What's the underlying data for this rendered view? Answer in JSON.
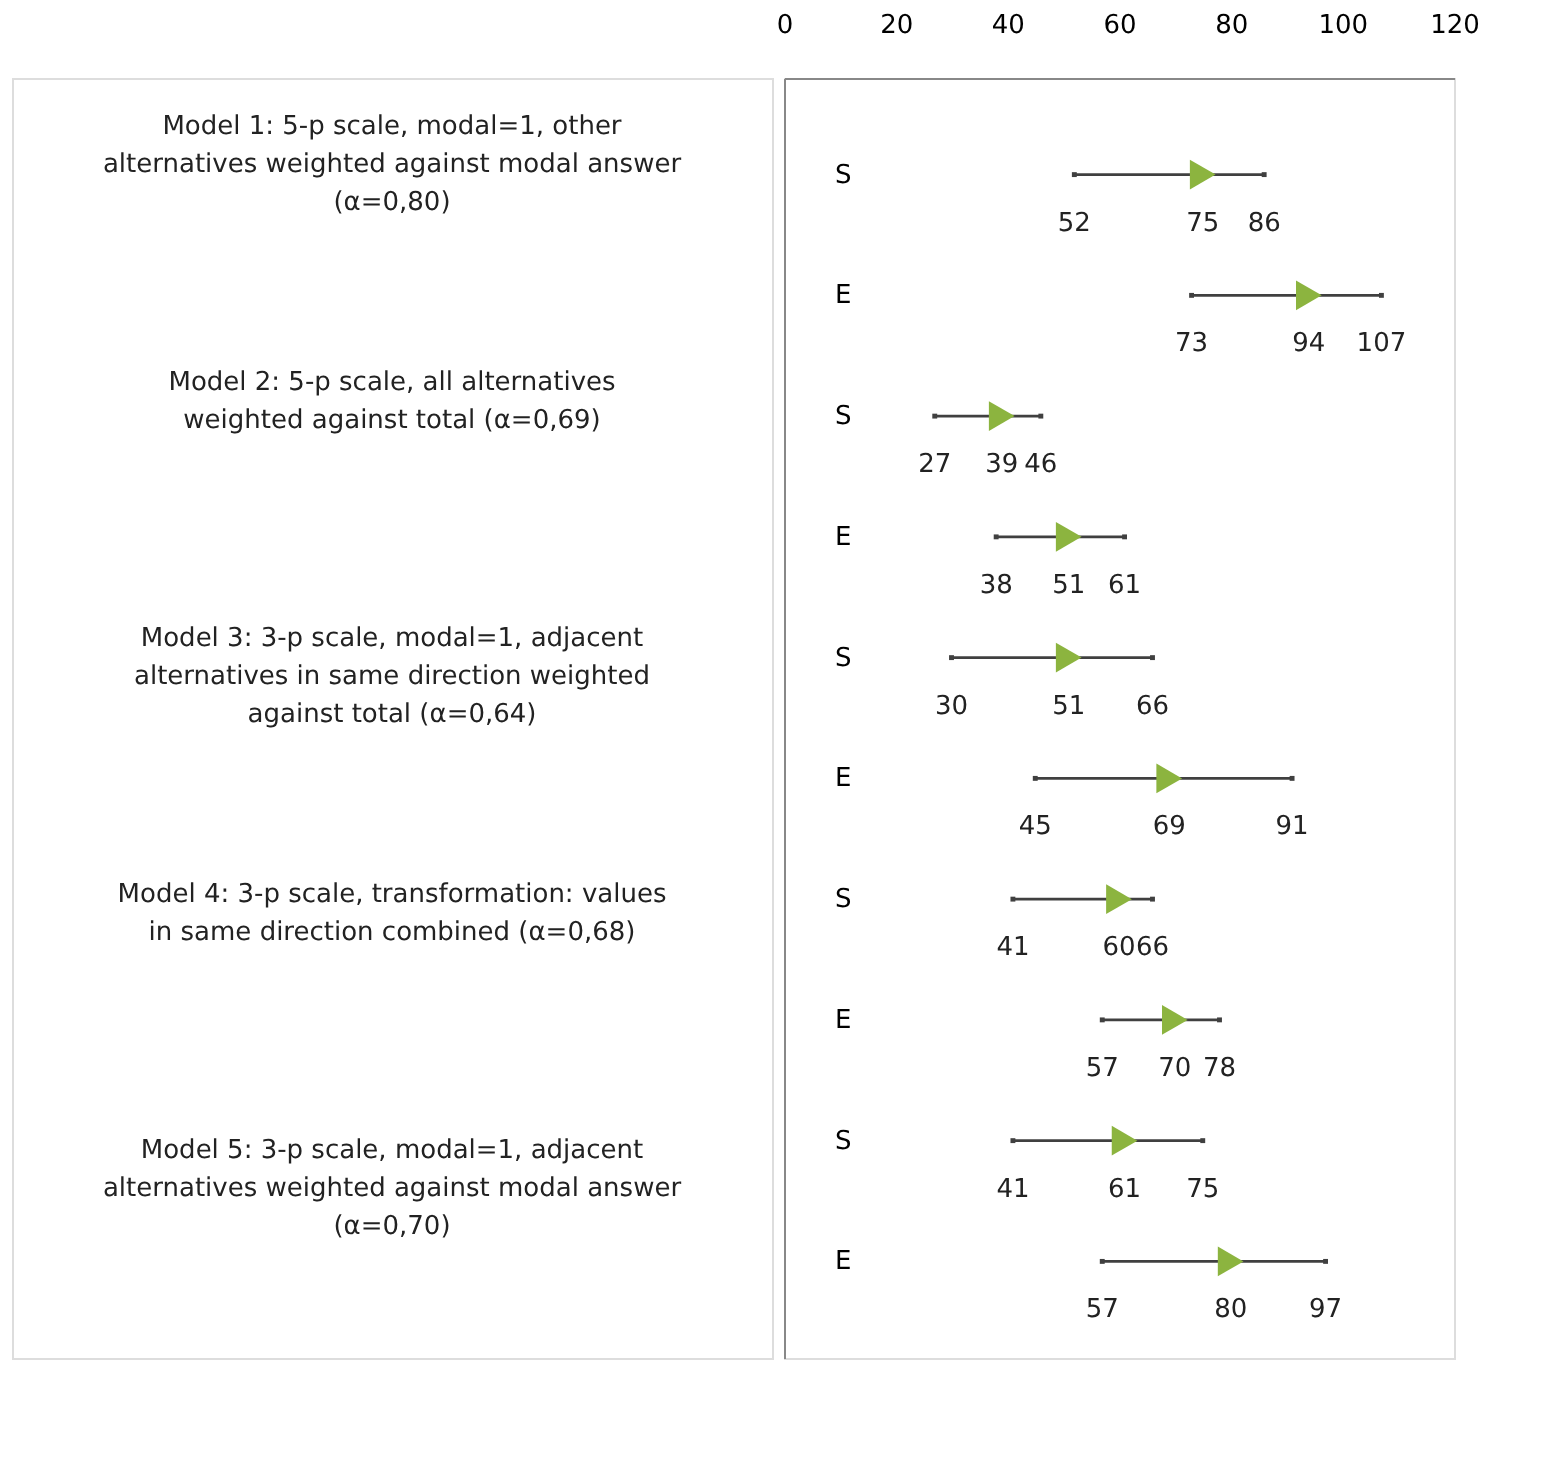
{
  "chart_data": {
    "type": "scatter",
    "orientation": "horizontal",
    "marker": "triangle",
    "data_labels": true,
    "categories": [
      "S",
      "E",
      "S",
      "E",
      "S",
      "E",
      "S",
      "E",
      "S",
      "E"
    ],
    "series": [
      {
        "color": "#8cb43f",
        "values": [
          75,
          94,
          39,
          51,
          51,
          69,
          60,
          70,
          61,
          80
        ]
      },
      {
        "color": "#404040",
        "marker": "square",
        "values": [
          52,
          73,
          27,
          38,
          30,
          45,
          41,
          57,
          41,
          57
        ]
      },
      {
        "color": "#404040",
        "marker": "square",
        "values": [
          86,
          107,
          46,
          61,
          66,
          91,
          66,
          78,
          75,
          97
        ]
      }
    ],
    "xlim": [
      0,
      120
    ],
    "xticks": [
      0,
      20,
      40,
      60,
      80,
      100,
      120
    ],
    "annotations": [
      "Model 1: 5-p scale, modal=1, other alternatives weighted against modal answer (α=0,80)",
      "Model 2: 5-p scale, all alternatives weighted against total (α=0,69)",
      "Model 3: 3-p scale, modal=1, adjacent alternatives in same direction weighted against total (α=0,64)",
      "Model 4: 3-p scale, transformation: values in same direction combined (α=0,68)",
      "Model 5: 3-p scale, modal=1, adjacent alternatives weighted against modal answer (α=0,70)"
    ]
  }
}
